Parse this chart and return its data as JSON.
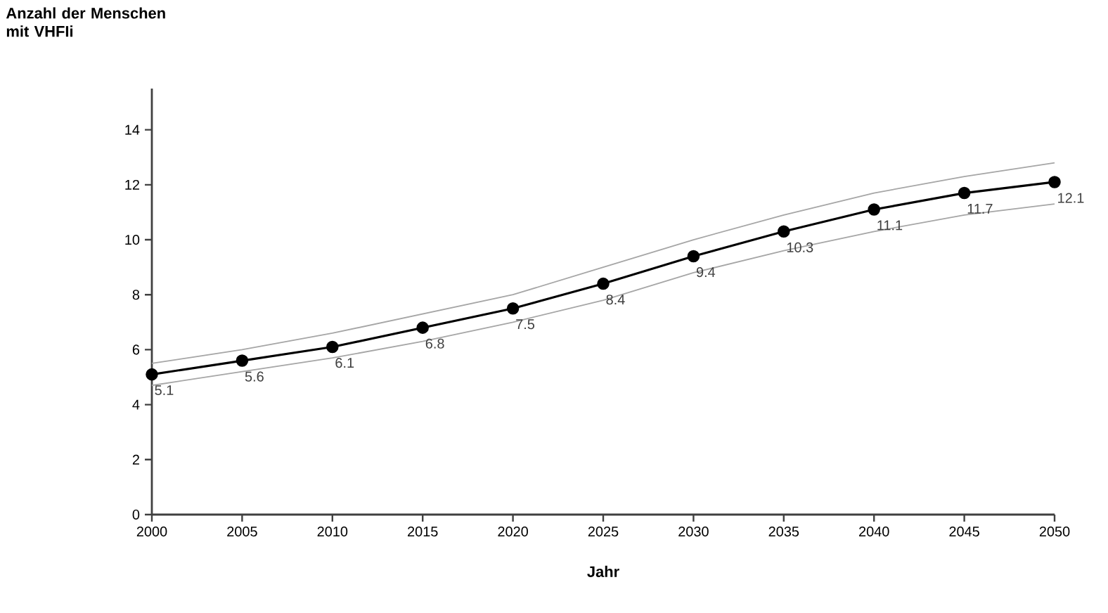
{
  "chart_data": {
    "type": "line",
    "ylabel": "Anzahl der Menschen mit VHFIi",
    "xlabel": "Jahr",
    "x": [
      2000,
      2005,
      2010,
      2015,
      2020,
      2025,
      2030,
      2035,
      2040,
      2045,
      2050
    ],
    "series": [
      {
        "color": "#a6a6a6",
        "marker": "none",
        "values": [
          5.5,
          6.0,
          6.6,
          7.3,
          8.0,
          9.0,
          10.0,
          10.9,
          11.7,
          12.3,
          12.8
        ]
      },
      {
        "color": "#a6a6a6",
        "marker": "none",
        "values": [
          4.7,
          5.2,
          5.7,
          6.3,
          7.0,
          7.8,
          8.8,
          9.6,
          10.3,
          10.9,
          11.3
        ]
      },
      {
        "color": "#000000",
        "values": [
          5.1,
          5.6,
          6.1,
          6.8,
          7.5,
          8.4,
          9.4,
          10.3,
          11.1,
          11.7,
          12.1
        ],
        "value_labels": [
          "5.1",
          "5.6",
          "6.1",
          "6.8",
          "7.5",
          "8.4",
          "9.4",
          "10.3",
          "11.1",
          "11.7",
          "12.1"
        ]
      }
    ],
    "xlim": [
      2000,
      2050
    ],
    "xticks": [
      2000,
      2005,
      2010,
      2015,
      2020,
      2025,
      2030,
      2035,
      2040,
      2045,
      2050
    ],
    "ylim": [
      0,
      15.5
    ],
    "yticks": [
      0,
      2,
      4,
      6,
      8,
      10,
      12,
      14
    ],
    "marker": "circle",
    "line_style": "solid",
    "grid": false
  }
}
